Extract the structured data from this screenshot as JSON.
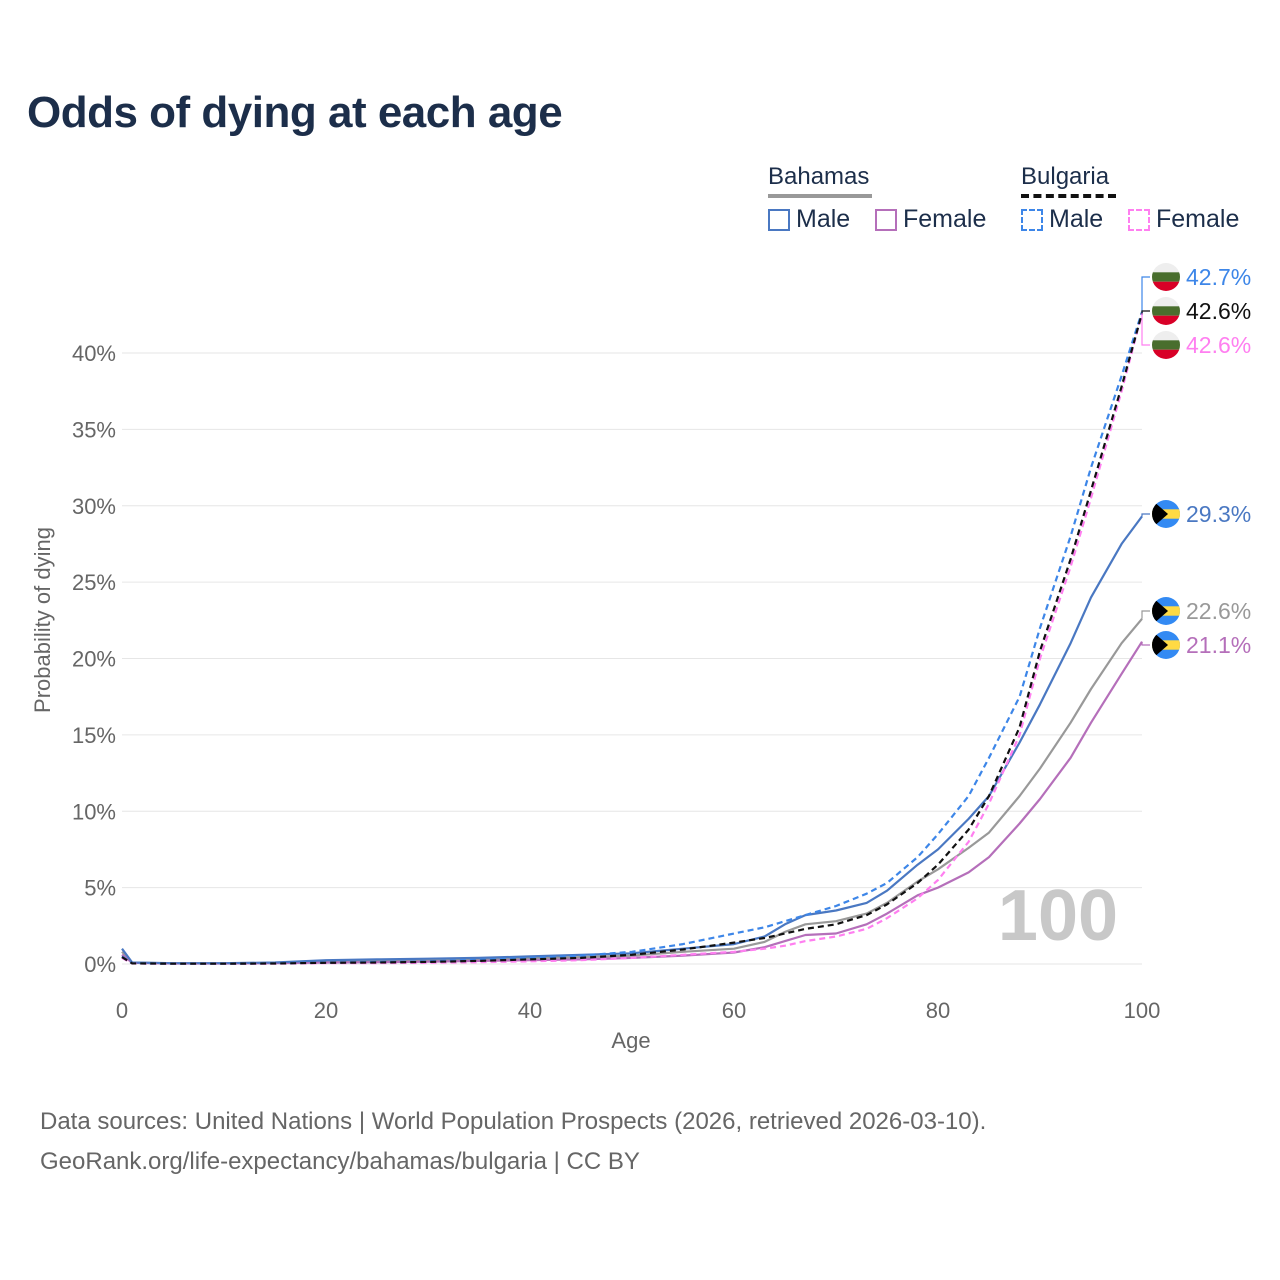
{
  "title": "Odds of dying at each age",
  "legend": {
    "bahamas": {
      "label": "Bahamas",
      "male": "Male",
      "female": "Female"
    },
    "bulgaria": {
      "label": "Bulgaria",
      "male": "Male",
      "female": "Female"
    }
  },
  "watermark": "100",
  "footer": {
    "line1": "Data sources: United Nations | World Population Prospects (2026, retrieved 2026-03-10).",
    "line2": "GeoRank.org/life-expectancy/bahamas/bulgaria | CC BY"
  },
  "chart_data": {
    "type": "line",
    "title": "Odds of dying at each age",
    "xlabel": "Age",
    "ylabel": "Probability of dying",
    "xlim": [
      0,
      100
    ],
    "ylim": [
      0,
      45
    ],
    "xticks": [
      0,
      20,
      40,
      60,
      80,
      100
    ],
    "yticks": [
      0,
      5,
      10,
      15,
      20,
      25,
      30,
      35,
      40
    ],
    "ytick_labels": [
      "0%",
      "5%",
      "10%",
      "15%",
      "20%",
      "25%",
      "30%",
      "35%",
      "40%"
    ],
    "x": [
      0,
      1,
      5,
      10,
      15,
      20,
      25,
      30,
      35,
      40,
      45,
      50,
      55,
      60,
      63,
      65,
      67,
      70,
      73,
      75,
      78,
      80,
      83,
      85,
      88,
      90,
      93,
      95,
      98,
      100
    ],
    "series": [
      {
        "name": "Bahamas Male",
        "country": "Bahamas",
        "sex": "Male",
        "color": "#4a78c2",
        "dash": "solid",
        "end_label": "29.3%",
        "values": [
          1.0,
          0.1,
          0.05,
          0.05,
          0.1,
          0.25,
          0.3,
          0.35,
          0.4,
          0.5,
          0.6,
          0.7,
          1.0,
          1.3,
          1.8,
          2.6,
          3.2,
          3.5,
          4.0,
          4.8,
          6.5,
          7.5,
          9.5,
          11.0,
          14.5,
          17.0,
          21.0,
          24.0,
          27.5,
          29.3
        ]
      },
      {
        "name": "Bahamas Female",
        "country": "Bahamas",
        "sex": "Female",
        "color": "#b56fba",
        "dash": "solid",
        "end_label": "21.1%",
        "values": [
          0.6,
          0.08,
          0.03,
          0.03,
          0.05,
          0.1,
          0.12,
          0.15,
          0.2,
          0.25,
          0.3,
          0.4,
          0.55,
          0.75,
          1.1,
          1.5,
          1.9,
          2.0,
          2.6,
          3.3,
          4.5,
          5.0,
          6.0,
          7.0,
          9.2,
          10.8,
          13.5,
          15.8,
          19.0,
          21.1
        ]
      },
      {
        "name": "Bahamas Both",
        "country": "Bahamas",
        "sex": "Both",
        "color": "#999999",
        "dash": "solid",
        "end_label": "22.6%",
        "values": [
          0.8,
          0.09,
          0.04,
          0.04,
          0.07,
          0.18,
          0.2,
          0.25,
          0.3,
          0.38,
          0.45,
          0.55,
          0.8,
          1.0,
          1.45,
          2.1,
          2.6,
          2.8,
          3.3,
          4.0,
          5.4,
          6.2,
          7.6,
          8.6,
          11.0,
          12.8,
          15.8,
          18.0,
          21.0,
          22.6
        ]
      },
      {
        "name": "Bulgaria Male",
        "country": "Bulgaria",
        "sex": "Male",
        "color": "#3d86e8",
        "dash": "dashed",
        "end_label": "42.7%",
        "values": [
          0.5,
          0.04,
          0.02,
          0.02,
          0.04,
          0.1,
          0.13,
          0.18,
          0.28,
          0.4,
          0.55,
          0.8,
          1.3,
          2.0,
          2.4,
          2.8,
          3.2,
          3.8,
          4.6,
          5.3,
          7.0,
          8.5,
          11.0,
          13.5,
          17.5,
          22.0,
          28.0,
          32.5,
          38.5,
          42.7
        ]
      },
      {
        "name": "Bulgaria Both",
        "country": "Bulgaria",
        "sex": "Both",
        "color": "#111111",
        "dash": "dashed",
        "end_label": "42.6%",
        "values": [
          0.45,
          0.04,
          0.02,
          0.02,
          0.03,
          0.08,
          0.1,
          0.14,
          0.2,
          0.3,
          0.4,
          0.6,
          0.95,
          1.4,
          1.7,
          2.0,
          2.3,
          2.6,
          3.2,
          3.9,
          5.3,
          6.5,
          8.8,
          11.0,
          15.5,
          20.5,
          26.5,
          31.0,
          37.8,
          42.6
        ]
      },
      {
        "name": "Bulgaria Female",
        "country": "Bulgaria",
        "sex": "Female",
        "color": "#ff7ff0",
        "dash": "dashed",
        "end_label": "42.6%",
        "values": [
          0.4,
          0.03,
          0.01,
          0.01,
          0.02,
          0.05,
          0.06,
          0.08,
          0.12,
          0.18,
          0.25,
          0.4,
          0.6,
          0.8,
          1.0,
          1.2,
          1.5,
          1.8,
          2.3,
          3.0,
          4.3,
          5.5,
          8.0,
          10.5,
          15.0,
          20.0,
          26.0,
          30.5,
          37.5,
          42.6
        ]
      }
    ]
  }
}
